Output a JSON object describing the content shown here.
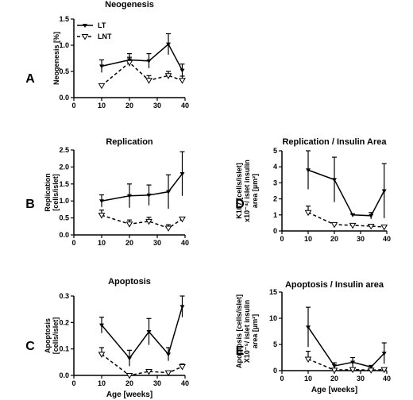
{
  "chart_data": [
    {
      "panel_label": "A",
      "type": "line",
      "title": "Neogenesis",
      "ylabel_lines": [
        "Neogenesis [%]"
      ],
      "xlabel": "",
      "xlim": [
        0,
        40
      ],
      "ylim": [
        0,
        1.5
      ],
      "xticks": [
        "0",
        "10",
        "20",
        "30",
        "40"
      ],
      "yticks": [
        "0.0",
        "0.5",
        "1.0",
        "1.5"
      ],
      "legend": [
        "LT",
        "LNT"
      ],
      "series": [
        {
          "name": "LT",
          "x": [
            10,
            20,
            27,
            34,
            39
          ],
          "y": [
            0.6,
            0.72,
            0.7,
            1.02,
            0.52
          ],
          "err": [
            0.12,
            0.12,
            0.14,
            0.2,
            0.12
          ]
        },
        {
          "name": "LNT",
          "x": [
            10,
            20,
            27,
            34,
            39
          ],
          "y": [
            0.23,
            0.67,
            0.33,
            0.42,
            0.33
          ],
          "err": [
            0.0,
            0.1,
            0.09,
            0.08,
            0.08
          ]
        }
      ]
    },
    {
      "panel_label": "B",
      "type": "line",
      "title": "Replication",
      "ylabel_lines": [
        "Replication",
        "[cells/islet]"
      ],
      "xlabel": "",
      "xlim": [
        0,
        40
      ],
      "ylim": [
        0,
        2.5
      ],
      "xticks": [
        "0",
        "10",
        "20",
        "30",
        "40"
      ],
      "yticks": [
        "0.0",
        "0.5",
        "1.0",
        "1.5",
        "2.0",
        "2.5"
      ],
      "series": [
        {
          "name": "LT",
          "x": [
            10,
            20,
            27,
            34,
            39
          ],
          "y": [
            1.0,
            1.15,
            1.17,
            1.27,
            1.8
          ],
          "err": [
            0.18,
            0.35,
            0.3,
            0.5,
            0.65
          ]
        },
        {
          "name": "LNT",
          "x": [
            10,
            20,
            27,
            34,
            39
          ],
          "y": [
            0.58,
            0.32,
            0.4,
            0.2,
            0.47
          ],
          "err": [
            0.15,
            0.12,
            0.12,
            0.1,
            0.05
          ]
        }
      ]
    },
    {
      "panel_label": "C",
      "type": "line",
      "title": "Apoptosis",
      "ylabel_lines": [
        "Apoptosis",
        "[cells/islet]"
      ],
      "xlabel": "Age [weeks]",
      "xlim": [
        0,
        40
      ],
      "ylim": [
        0,
        0.3
      ],
      "xticks": [
        "0",
        "10",
        "20",
        "30",
        "40"
      ],
      "yticks": [
        "0.0",
        "0.1",
        "0.2",
        "0.3"
      ],
      "series": [
        {
          "name": "LT",
          "x": [
            10,
            20,
            27,
            34,
            39
          ],
          "y": [
            0.19,
            0.065,
            0.165,
            0.08,
            0.26
          ],
          "err": [
            0.03,
            0.03,
            0.05,
            0.025,
            0.04
          ]
        },
        {
          "name": "LNT",
          "x": [
            10,
            20,
            27,
            34,
            39
          ],
          "y": [
            0.08,
            0.0,
            0.015,
            0.01,
            0.033
          ],
          "err": [
            0.025,
            0.0,
            0.005,
            0.005,
            0.01
          ]
        }
      ]
    },
    {
      "panel_label": "D",
      "type": "line",
      "title": "Replication / Insulin Area",
      "ylabel_lines": [
        "K167 [cells/islet]",
        "x10⁻⁴/ islet insulin",
        "area [µm²]"
      ],
      "xlabel": "",
      "xlim": [
        0,
        40
      ],
      "ylim": [
        0,
        5
      ],
      "xticks": [
        "0",
        "10",
        "20",
        "30",
        "40"
      ],
      "yticks": [
        "0",
        "1",
        "2",
        "3",
        "4",
        "5"
      ],
      "series": [
        {
          "name": "LT",
          "x": [
            10,
            20,
            27,
            34,
            39
          ],
          "y": [
            3.8,
            3.2,
            1.0,
            0.95,
            2.5
          ],
          "err": [
            1.2,
            1.4,
            0.05,
            0.2,
            1.7
          ]
        },
        {
          "name": "LNT",
          "x": [
            10,
            20,
            27,
            34,
            39
          ],
          "y": [
            1.15,
            0.4,
            0.35,
            0.3,
            0.25
          ],
          "err": [
            0.4,
            0.1,
            0.05,
            0.05,
            0.05
          ]
        }
      ]
    },
    {
      "panel_label": "E",
      "type": "line",
      "title": "Apoptosis / Insulin area",
      "ylabel_lines": [
        "Apoptosis [cells/islet]",
        "X10⁻⁵/ islet insulin",
        "area [µm²]"
      ],
      "xlabel": "Age [weeks]",
      "xlim": [
        0,
        40
      ],
      "ylim": [
        0,
        15
      ],
      "xticks": [
        "0",
        "10",
        "20",
        "30",
        "40"
      ],
      "yticks": [
        "0",
        "5",
        "10",
        "15"
      ],
      "series": [
        {
          "name": "LT",
          "x": [
            10,
            20,
            27,
            34,
            39
          ],
          "y": [
            8.3,
            0.9,
            1.6,
            0.7,
            3.3
          ],
          "err": [
            3.8,
            0.6,
            0.9,
            0.3,
            2.0
          ]
        },
        {
          "name": "LNT",
          "x": [
            10,
            20,
            27,
            34,
            39
          ],
          "y": [
            2.2,
            0.1,
            0.2,
            0.1,
            0.2
          ],
          "err": [
            1.5,
            0.2,
            0.2,
            0.1,
            0.1
          ]
        }
      ]
    }
  ],
  "colors": {
    "line": "#000000",
    "background": "#ffffff"
  }
}
